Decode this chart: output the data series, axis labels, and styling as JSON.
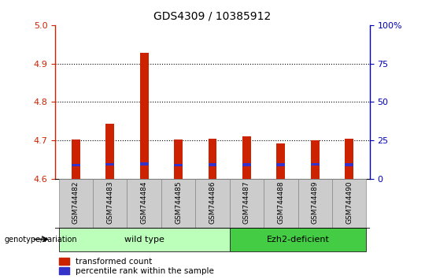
{
  "title": "GDS4309 / 10385912",
  "samples": [
    "GSM744482",
    "GSM744483",
    "GSM744484",
    "GSM744485",
    "GSM744486",
    "GSM744487",
    "GSM744488",
    "GSM744489",
    "GSM744490"
  ],
  "transformed_count": [
    4.702,
    4.742,
    4.928,
    4.702,
    4.703,
    4.71,
    4.692,
    4.7,
    4.703
  ],
  "percentile_rank_val": [
    4.635,
    4.637,
    4.638,
    4.635,
    4.636,
    4.636,
    4.636,
    4.637,
    4.636
  ],
  "bar_bottom": 4.6,
  "ylim_left": [
    4.6,
    5.0
  ],
  "ylim_right": [
    0,
    100
  ],
  "yticks_left": [
    4.6,
    4.7,
    4.8,
    4.9,
    5.0
  ],
  "yticks_right": [
    0,
    25,
    50,
    75,
    100
  ],
  "ytick_labels_right": [
    "0",
    "25",
    "50",
    "75",
    "100%"
  ],
  "bar_color_red": "#cc2200",
  "bar_color_blue": "#3333cc",
  "groups": [
    {
      "label": "wild type",
      "start": 0,
      "end": 4,
      "color": "#bbffbb"
    },
    {
      "label": "Ezh2-deficient",
      "start": 5,
      "end": 8,
      "color": "#44cc44"
    }
  ],
  "legend_red_label": "transformed count",
  "legend_blue_label": "percentile rank within the sample",
  "bar_width": 0.25,
  "background_color": "#ffffff",
  "tick_label_bgcolor": "#cccccc",
  "grid_color": "#000000"
}
